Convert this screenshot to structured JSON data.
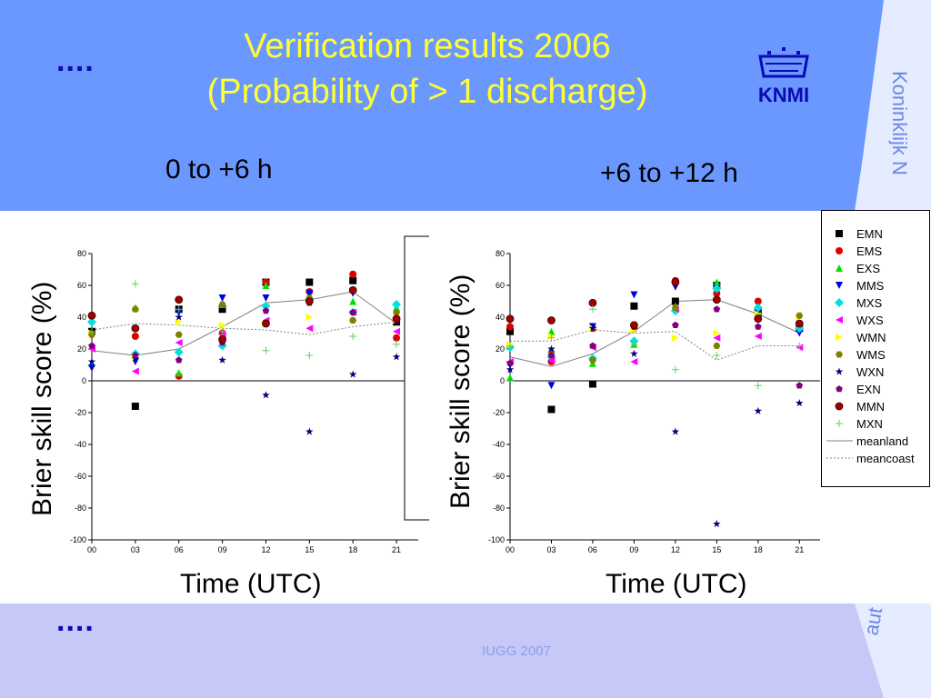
{
  "slide": {
    "title_line1": "Verification results 2006",
    "title_line2": "(Probability of > 1 discharge)",
    "dots_top": "....",
    "dots_bottom": "....",
    "panel_left_title": "0 to +6 h",
    "panel_right_title": "+6 to +12 h",
    "side_text_top": "Koninklijk N",
    "side_text_bottom": "aut",
    "footer": "IUGG 2007",
    "logo_text": "KNMI",
    "colors": {
      "top_band": "#6a98ff",
      "bottom_band": "#c6c8f8",
      "title": "#ffff33",
      "dots": "#0a0ab0"
    }
  },
  "chart_data": [
    {
      "type": "scatter",
      "title": "0 to +6 h",
      "xlabel": "Time (UTC)",
      "ylabel": "Brier skill score (%)",
      "x_ticks": [
        "00",
        "03",
        "06",
        "09",
        "12",
        "15",
        "18",
        "21"
      ],
      "y_ticks": [
        80,
        60,
        40,
        20,
        0,
        -20,
        -40,
        -60,
        -80,
        -100
      ],
      "ylim": [
        -100,
        80
      ],
      "x": [
        0,
        3,
        6,
        9,
        12,
        15,
        18,
        21
      ],
      "series": [
        {
          "name": "EMN",
          "color": "#000000",
          "marker": "square",
          "values": [
            31,
            -16,
            45,
            45,
            62,
            62,
            63,
            37
          ]
        },
        {
          "name": "EMS",
          "color": "#e00000",
          "marker": "circle",
          "values": [
            41,
            28,
            3,
            30,
            62,
            56,
            67,
            27
          ]
        },
        {
          "name": "EXS",
          "color": "#00e000",
          "marker": "triangle-up",
          "values": [
            11,
            46,
            5,
            48,
            60,
            54,
            50,
            46
          ]
        },
        {
          "name": "MMS",
          "color": "#0000e0",
          "marker": "triangle-down",
          "values": [
            8,
            12,
            43,
            52,
            52,
            55,
            55,
            38
          ]
        },
        {
          "name": "MXS",
          "color": "#00e0e0",
          "marker": "diamond",
          "values": [
            37,
            17,
            18,
            22,
            47,
            51,
            43,
            48
          ]
        },
        {
          "name": "WXS",
          "color": "#ff00ff",
          "marker": "triangle-left",
          "values": [
            20,
            6,
            24,
            29,
            38,
            33,
            43,
            31
          ]
        },
        {
          "name": "WMN",
          "color": "#ffff00",
          "marker": "triangle-right",
          "values": [
            30,
            15,
            37,
            35,
            36,
            40,
            38,
            38
          ]
        },
        {
          "name": "WMS",
          "color": "#808000",
          "marker": "hexagon",
          "values": [
            29,
            45,
            29,
            48,
            36,
            52,
            38,
            43
          ]
        },
        {
          "name": "WXN",
          "color": "#000080",
          "marker": "star",
          "values": [
            12,
            14,
            40,
            13,
            -9,
            -32,
            4,
            15
          ]
        },
        {
          "name": "EXN",
          "color": "#800080",
          "marker": "pentagon",
          "values": [
            22,
            16,
            13,
            24,
            44,
            49,
            43,
            38
          ]
        },
        {
          "name": "MMN",
          "color": "#a00000",
          "marker": "sphere",
          "values": [
            41,
            33,
            51,
            26,
            36,
            50,
            57,
            39
          ]
        },
        {
          "name": "MXN",
          "color": "#66cc66",
          "marker": "plus",
          "values": [
            31,
            61,
            45,
            31,
            19,
            16,
            28,
            23
          ]
        }
      ],
      "lines": [
        {
          "name": "meanland",
          "color": "#808080",
          "style": "solid",
          "values": [
            19,
            16,
            20,
            34,
            49,
            51,
            56,
            36
          ]
        },
        {
          "name": "meancoast",
          "color": "#808080",
          "style": "dotted",
          "values": [
            32,
            36,
            35,
            33,
            32,
            29,
            34,
            37
          ]
        }
      ]
    },
    {
      "type": "scatter",
      "title": "+6 to +12 h",
      "xlabel": "Time (UTC)",
      "ylabel": "Brier skill score (%)",
      "x_ticks": [
        "00",
        "03",
        "06",
        "09",
        "12",
        "15",
        "18",
        "21"
      ],
      "y_ticks": [
        80,
        60,
        40,
        20,
        0,
        -20,
        -40,
        -60,
        -80,
        -100
      ],
      "ylim": [
        -100,
        80
      ],
      "x": [
        0,
        3,
        6,
        9,
        12,
        15,
        18,
        21
      ],
      "series": [
        {
          "name": "EMN",
          "color": "#000000",
          "marker": "square",
          "values": [
            31,
            -18,
            -2,
            47,
            50,
            60,
            43,
            33
          ]
        },
        {
          "name": "EMS",
          "color": "#e00000",
          "marker": "circle",
          "values": [
            34,
            12,
            33,
            33,
            63,
            55,
            50,
            35
          ]
        },
        {
          "name": "EXS",
          "color": "#00e000",
          "marker": "triangle-up",
          "values": [
            2,
            31,
            11,
            23,
            47,
            62,
            44,
            34
          ]
        },
        {
          "name": "MMS",
          "color": "#0000e0",
          "marker": "triangle-down",
          "values": [
            10,
            -3,
            34,
            54,
            59,
            58,
            43,
            30
          ]
        },
        {
          "name": "MXS",
          "color": "#00e0e0",
          "marker": "diamond",
          "values": [
            21,
            15,
            14,
            25,
            44,
            58,
            46,
            33
          ]
        },
        {
          "name": "WXS",
          "color": "#ff00ff",
          "marker": "triangle-left",
          "values": [
            12,
            13,
            21,
            12,
            45,
            27,
            28,
            21
          ]
        },
        {
          "name": "WMN",
          "color": "#ffff00",
          "marker": "triangle-right",
          "values": [
            23,
            28,
            33,
            32,
            27,
            30,
            42,
            40
          ]
        },
        {
          "name": "WMS",
          "color": "#808000",
          "marker": "hexagon",
          "values": [
            39,
            18,
            13,
            34,
            46,
            22,
            40,
            41
          ]
        },
        {
          "name": "WXN",
          "color": "#000080",
          "marker": "star",
          "values": [
            7,
            20,
            33,
            17,
            -32,
            -90,
            -19,
            -14
          ]
        },
        {
          "name": "EXN",
          "color": "#800080",
          "marker": "pentagon",
          "values": [
            11,
            16,
            22,
            34,
            35,
            45,
            34,
            -3
          ]
        },
        {
          "name": "MMN",
          "color": "#a00000",
          "marker": "sphere",
          "values": [
            39,
            38,
            49,
            35,
            62,
            51,
            39,
            36
          ]
        },
        {
          "name": "MXN",
          "color": "#66cc66",
          "marker": "plus",
          "values": [
            22,
            27,
            45,
            23,
            7,
            16,
            -3,
            22
          ]
        }
      ],
      "lines": [
        {
          "name": "meanland",
          "color": "#808080",
          "style": "solid",
          "values": [
            15,
            9,
            17,
            31,
            50,
            51,
            42,
            30
          ]
        },
        {
          "name": "meancoast",
          "color": "#808080",
          "style": "dotted",
          "values": [
            25,
            25,
            32,
            30,
            31,
            13,
            22,
            22
          ]
        }
      ]
    }
  ]
}
